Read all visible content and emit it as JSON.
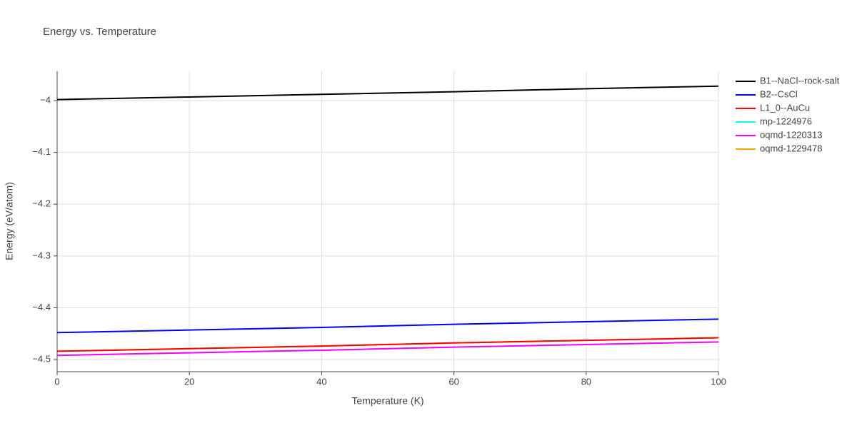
{
  "chart_data": {
    "type": "line",
    "title": "Energy vs. Temperature",
    "x_label": "Temperature (K)",
    "y_label": "Energy (eV/atom)",
    "x": [
      0,
      20,
      40,
      60,
      80,
      100
    ],
    "xlim": [
      0,
      100
    ],
    "xticks": [
      0,
      20,
      40,
      60,
      80,
      100
    ],
    "ylim": [
      -4.5234,
      -3.9435
    ],
    "yticks": [
      {
        "value": -4,
        "label": "−4"
      },
      {
        "value": -4.1,
        "label": "−4.1"
      },
      {
        "value": -4.2,
        "label": "−4.2"
      },
      {
        "value": -4.3,
        "label": "−4.3"
      },
      {
        "value": -4.4,
        "label": "−4.4"
      },
      {
        "value": -4.5,
        "label": "−4.5"
      }
    ],
    "grid": true,
    "legend": "right",
    "series": [
      {
        "name": "B1--NaCl--rock-salt",
        "color": "#000000",
        "values": [
          -3.998,
          -3.993,
          -3.988,
          -3.983,
          -3.977,
          -3.972
        ]
      },
      {
        "name": "B2--CsCl",
        "color": "#0000ff",
        "values": [
          -4.448,
          -4.443,
          -4.438,
          -4.432,
          -4.427,
          -4.422
        ]
      },
      {
        "name": "L1_0--AuCu",
        "color": "#ff0000",
        "values": [
          -4.484,
          -4.479,
          -4.474,
          -4.468,
          -4.463,
          -4.458
        ]
      },
      {
        "name": "mp-1224976",
        "color": "#00ffff",
        "values": [
          -4.492,
          -4.487,
          -4.482,
          -4.476,
          -4.471,
          -4.466
        ]
      },
      {
        "name": "oqmd-1220313",
        "color": "#ff00ff",
        "values": [
          -4.492,
          -4.487,
          -4.482,
          -4.476,
          -4.471,
          -4.466
        ]
      },
      {
        "name": "oqmd-1229478",
        "color": "#ffa500",
        "values": [
          -4.484,
          -4.479,
          -4.474,
          -4.468,
          -4.463,
          -4.458
        ]
      }
    ]
  }
}
